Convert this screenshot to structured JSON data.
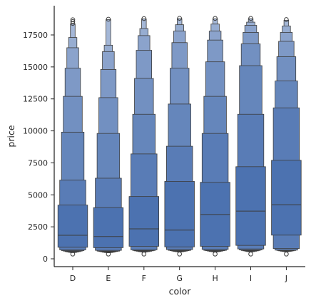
{
  "chart_data": {
    "type": "boxen",
    "xlabel": "color",
    "ylabel": "price",
    "ylim": [
      -500,
      19300
    ],
    "yticks": [
      0,
      2500,
      5000,
      7500,
      10000,
      12500,
      15000,
      17500
    ],
    "categories": [
      "D",
      "E",
      "F",
      "G",
      "H",
      "I",
      "J"
    ],
    "color": "#4c72b0",
    "groups": [
      {
        "category": "D",
        "median": 1840,
        "outliers": [
          370,
          18400,
          18550,
          18690
        ],
        "levels": [
          [
            900,
            4200
          ],
          [
            700,
            6150
          ],
          [
            640,
            9900
          ],
          [
            600,
            12700
          ],
          [
            560,
            14900
          ],
          [
            530,
            16500
          ],
          [
            500,
            17300
          ],
          [
            480,
            18350
          ]
        ]
      },
      {
        "category": "E",
        "median": 1740,
        "outliers": [
          370,
          18730
        ],
        "levels": [
          [
            870,
            4000
          ],
          [
            660,
            6300
          ],
          [
            600,
            9800
          ],
          [
            570,
            12600
          ],
          [
            540,
            14800
          ],
          [
            510,
            16200
          ],
          [
            490,
            16700
          ],
          [
            470,
            18700
          ]
        ]
      },
      {
        "category": "F",
        "median": 2340,
        "outliers": [
          370,
          18780
        ],
        "levels": [
          [
            980,
            4870
          ],
          [
            700,
            8200
          ],
          [
            650,
            11300
          ],
          [
            620,
            14100
          ],
          [
            590,
            16300
          ],
          [
            560,
            17450
          ],
          [
            540,
            18000
          ],
          [
            520,
            18750
          ]
        ]
      },
      {
        "category": "G",
        "median": 2240,
        "outliers": [
          370,
          18800
        ],
        "levels": [
          [
            930,
            6050
          ],
          [
            720,
            8800
          ],
          [
            660,
            12100
          ],
          [
            630,
            14900
          ],
          [
            600,
            16900
          ],
          [
            570,
            17800
          ],
          [
            550,
            18300
          ],
          [
            530,
            18770
          ]
        ]
      },
      {
        "category": "H",
        "median": 3460,
        "outliers": [
          370,
          18790
        ],
        "levels": [
          [
            980,
            5980
          ],
          [
            730,
            9800
          ],
          [
            660,
            12700
          ],
          [
            630,
            15400
          ],
          [
            600,
            17100
          ],
          [
            570,
            17800
          ],
          [
            550,
            18350
          ],
          [
            530,
            18760
          ]
        ]
      },
      {
        "category": "I",
        "median": 3730,
        "outliers": [
          370,
          18790
        ],
        "levels": [
          [
            1050,
            7200
          ],
          [
            770,
            11300
          ],
          [
            690,
            15100
          ],
          [
            650,
            16800
          ],
          [
            620,
            17700
          ],
          [
            590,
            18250
          ],
          [
            560,
            18500
          ],
          [
            540,
            18770
          ]
        ]
      },
      {
        "category": "J",
        "median": 4230,
        "outliers": [
          370,
          18700
        ],
        "levels": [
          [
            1850,
            7700
          ],
          [
            800,
            11800
          ],
          [
            680,
            13900
          ],
          [
            650,
            15800
          ],
          [
            620,
            17000
          ],
          [
            590,
            17700
          ],
          [
            570,
            18200
          ],
          [
            550,
            18650
          ]
        ]
      }
    ]
  }
}
